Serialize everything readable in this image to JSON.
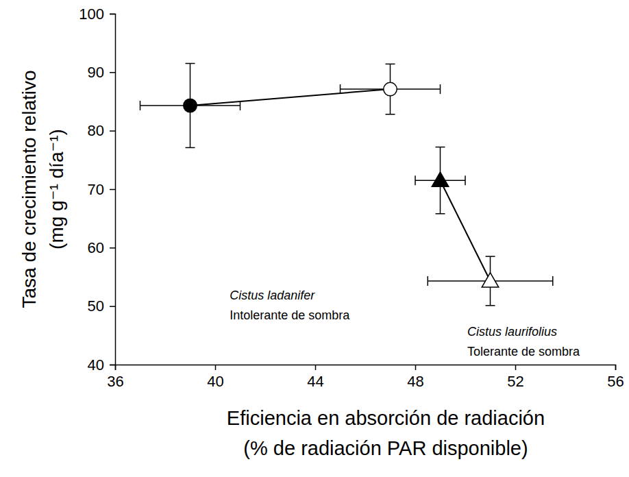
{
  "chart_data": {
    "type": "scatter",
    "x_label": [
      "Eficiencia en absorción de radiación",
      "(% de radiación PAR disponible)"
    ],
    "y_label": [
      "Tasa de crecimiento relativo",
      "(mg g⁻¹ día⁻¹)"
    ],
    "xlim": [
      36,
      56
    ],
    "xticks": [
      36,
      40,
      44,
      48,
      52,
      56
    ],
    "ylim": [
      40,
      100
    ],
    "yticks": [
      40,
      50,
      60,
      70,
      80,
      90,
      100
    ],
    "grid": false,
    "series": [
      {
        "color": "#000000",
        "marker": "circle",
        "line_style": "solid",
        "colors": [
          "#000000",
          "#ffffff"
        ],
        "x": [
          39,
          47
        ],
        "values": [
          84.3,
          87.1
        ],
        "x_errors": [
          2,
          2
        ],
        "errors": [
          7.2,
          4.3
        ]
      },
      {
        "color": "#000000",
        "marker": "triangle",
        "line_style": "solid",
        "colors": [
          "#000000",
          "#ffffff"
        ],
        "x": [
          49,
          51
        ],
        "values": [
          71.5,
          54.3
        ],
        "x_errors": [
          1,
          2.5
        ],
        "errors": [
          5.7,
          4.2
        ]
      }
    ],
    "annotations": [
      {
        "title": "Cistus ladanifer",
        "text": "Intolerante de sombra"
      },
      {
        "title": "Cistus laurifolius",
        "text": "Tolerante de sombra"
      }
    ]
  }
}
